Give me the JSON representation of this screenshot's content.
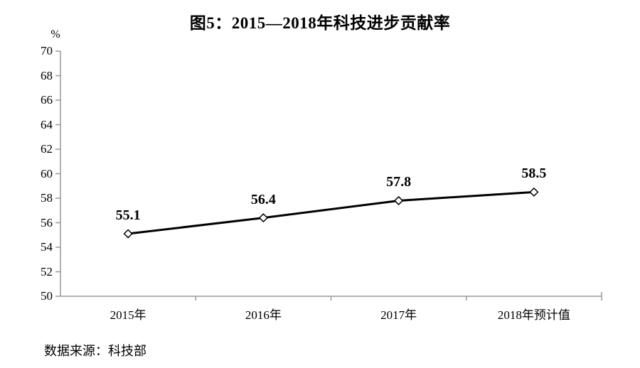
{
  "title": "图5：2015—2018年科技进步贡献率",
  "y_axis_unit": "%",
  "source_note": "数据来源：科技部",
  "colors": {
    "line": "#000000",
    "marker_fill": "#ffffff",
    "marker_stroke": "#000000",
    "axis": "#999999",
    "text": "#000000"
  },
  "chart_data": {
    "type": "line",
    "title": "图5：2015—2018年科技进步贡献率",
    "categories": [
      "2015年",
      "2016年",
      "2017年",
      "2018年预计值"
    ],
    "values": [
      55.1,
      56.4,
      57.8,
      58.5
    ],
    "data_labels": [
      "55.1",
      "56.4",
      "57.8",
      "58.5"
    ],
    "xlabel": "",
    "ylabel": "%",
    "ylim": [
      50,
      70
    ],
    "ytick_step": 2,
    "grid": false,
    "legend": "none",
    "marker": "diamond",
    "source": "数据来源：科技部"
  }
}
